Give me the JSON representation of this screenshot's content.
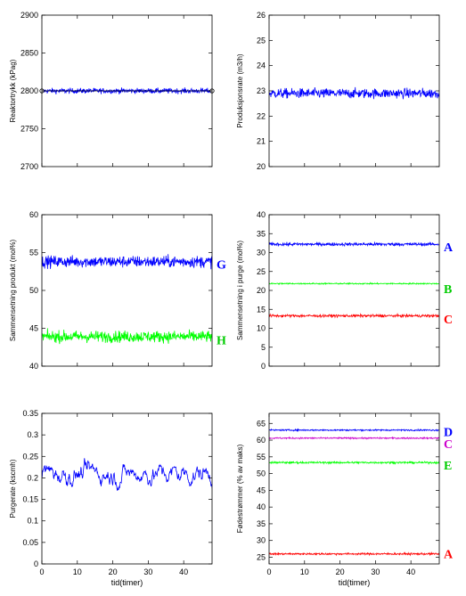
{
  "chart_data": [
    {
      "type": "line",
      "ylabel": "Reaktortrykk (kPag)",
      "xlabel": "",
      "xlim": [
        0,
        48
      ],
      "ylim": [
        2700,
        2900
      ],
      "yticks": [
        2700,
        2750,
        2800,
        2850,
        2900
      ],
      "xticks": [],
      "series": [
        {
          "color": "#0000ff",
          "base": 2800,
          "noise": 2.5,
          "kind": "white"
        },
        {
          "color": "#000000",
          "base": 2800,
          "noise": 0,
          "kind": "flat"
        }
      ],
      "annotations": []
    },
    {
      "type": "line",
      "ylabel": "Produksjonsrate (m3/h)",
      "xlabel": "",
      "xlim": [
        0,
        48
      ],
      "ylim": [
        20,
        26
      ],
      "yticks": [
        20,
        21,
        22,
        23,
        24,
        25,
        26
      ],
      "xticks": [],
      "series": [
        {
          "color": "#0000ff",
          "base": 22.9,
          "noise": 0.14,
          "kind": "white"
        }
      ],
      "annotations": []
    },
    {
      "type": "line",
      "ylabel": "Sammensetning produkt (mol%)",
      "xlabel": "",
      "xlim": [
        0,
        48
      ],
      "ylim": [
        40,
        60
      ],
      "yticks": [
        40,
        45,
        50,
        55,
        60
      ],
      "xticks": [],
      "series": [
        {
          "color": "#0000ff",
          "base": 53.8,
          "noise": 0.55,
          "kind": "white",
          "label": "G"
        },
        {
          "color": "#00ff00",
          "base": 43.9,
          "noise": 0.55,
          "kind": "white",
          "label": "H"
        }
      ],
      "annotations": [
        {
          "text": "G",
          "y": 53.5,
          "color": "#0000ff"
        },
        {
          "text": "H",
          "y": 43.5,
          "color": "#00cc00"
        }
      ]
    },
    {
      "type": "line",
      "ylabel": "Sammensetning i purge (mol%)",
      "xlabel": "",
      "xlim": [
        0,
        48
      ],
      "ylim": [
        0,
        40
      ],
      "yticks": [
        0,
        5,
        10,
        15,
        20,
        25,
        30,
        35,
        40
      ],
      "xticks": [],
      "series": [
        {
          "color": "#0000ff",
          "base": 32.2,
          "noise": 0.3,
          "kind": "white",
          "label": "A"
        },
        {
          "color": "#00ff00",
          "base": 21.8,
          "noise": 0.12,
          "kind": "white",
          "label": "B"
        },
        {
          "color": "#ff0000",
          "base": 13.3,
          "noise": 0.25,
          "kind": "white",
          "label": "C"
        }
      ],
      "annotations": [
        {
          "text": "A",
          "y": 31.5,
          "color": "#0000ff"
        },
        {
          "text": "B",
          "y": 20.5,
          "color": "#00cc00"
        },
        {
          "text": "C",
          "y": 12.5,
          "color": "#ff0000"
        }
      ]
    },
    {
      "type": "line",
      "ylabel": "Purgerate (kscmh)",
      "xlabel": "tid(timer)",
      "xlim": [
        0,
        48
      ],
      "ylim": [
        0,
        0.35
      ],
      "yticks": [
        0,
        0.05,
        0.1,
        0.15,
        0.2,
        0.25,
        0.3,
        0.35
      ],
      "xticks": [
        0,
        10,
        20,
        30,
        40
      ],
      "series": [
        {
          "color": "#0000ff",
          "base": 0.21,
          "noise": 0.016,
          "kind": "smooth"
        }
      ],
      "annotations": []
    },
    {
      "type": "line",
      "ylabel": "Fødestrømmer (% av maks)",
      "xlabel": "tid(timer)",
      "xlim": [
        0,
        48
      ],
      "ylim": [
        23,
        68
      ],
      "yticks": [
        25,
        30,
        35,
        40,
        45,
        50,
        55,
        60,
        65
      ],
      "xticks": [
        0,
        10,
        20,
        30,
        40
      ],
      "series": [
        {
          "color": "#0000ff",
          "base": 63.0,
          "noise": 0.15,
          "kind": "white",
          "label": "D"
        },
        {
          "color": "#cc00cc",
          "base": 60.6,
          "noise": 0.15,
          "kind": "white",
          "label": "C"
        },
        {
          "color": "#00ff00",
          "base": 53.3,
          "noise": 0.2,
          "kind": "white",
          "label": "E"
        },
        {
          "color": "#ff0000",
          "base": 26.0,
          "noise": 0.2,
          "kind": "white",
          "label": "A"
        }
      ],
      "annotations": [
        {
          "text": "D",
          "y": 62.5,
          "color": "#0000ff"
        },
        {
          "text": "C",
          "y": 59.0,
          "color": "#cc00cc"
        },
        {
          "text": "E",
          "y": 52.5,
          "color": "#00cc00"
        },
        {
          "text": "A",
          "y": 26.0,
          "color": "#ff0000"
        }
      ]
    }
  ]
}
